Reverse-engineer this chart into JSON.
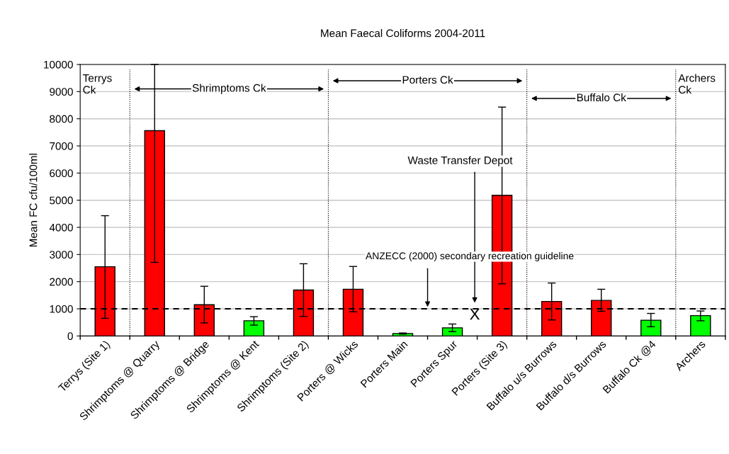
{
  "chart_data": {
    "type": "bar",
    "title": "Mean Faecal Coliforms 2004-2011",
    "ylabel": "Mean FC cfu/100ml",
    "categories": [
      "Terrys (Site 1)",
      "Shrimptoms @ Quarry",
      "Shrimptoms @ Bridge",
      "Shrimptoms @ Kent",
      "Shrimptoms (Site 2)",
      "Porters @ Wicks",
      "Porters Main",
      "Porters Spur",
      "Porters (Site 3)",
      "Buffalo u/s Burrows",
      "Buffalo d/s Burrows",
      "Buffalo Ck @4",
      "Archers"
    ],
    "values": [
      2550,
      7560,
      1150,
      560,
      1690,
      1720,
      90,
      300,
      5180,
      1270,
      1310,
      580,
      750
    ],
    "colors": [
      "#ff0000",
      "#ff0000",
      "#ff0000",
      "#00ff00",
      "#ff0000",
      "#ff0000",
      "#00ff00",
      "#00ff00",
      "#ff0000",
      "#ff0000",
      "#ff0000",
      "#00ff00",
      "#00ff00"
    ],
    "errors": [
      [
        650,
        4430
      ],
      [
        2710,
        10000
      ],
      [
        480,
        1830
      ],
      [
        400,
        710
      ],
      [
        720,
        2660
      ],
      [
        890,
        2560
      ],
      [
        70,
        110
      ],
      [
        160,
        440
      ],
      [
        1920,
        8430
      ],
      [
        590,
        1950
      ],
      [
        910,
        1720
      ],
      [
        340,
        830
      ],
      [
        560,
        920
      ]
    ],
    "ylim": [
      0,
      10000
    ],
    "yticks": [
      0,
      1000,
      2000,
      3000,
      4000,
      5000,
      6000,
      7000,
      8000,
      9000,
      10000
    ],
    "grid": "y",
    "legend": false,
    "ref_lines": [
      {
        "axis": "y",
        "value": 1000,
        "label": "ANZECC (2000) secondary recreation guideline",
        "color": "#000000",
        "line_style": "dashed"
      }
    ],
    "annotations": [
      "Terrys Ck",
      "Shrimptoms Ck",
      "Porters Ck",
      "Buffalo Ck",
      "Archers Ck",
      "Waste Transfer Depot",
      "X"
    ]
  }
}
